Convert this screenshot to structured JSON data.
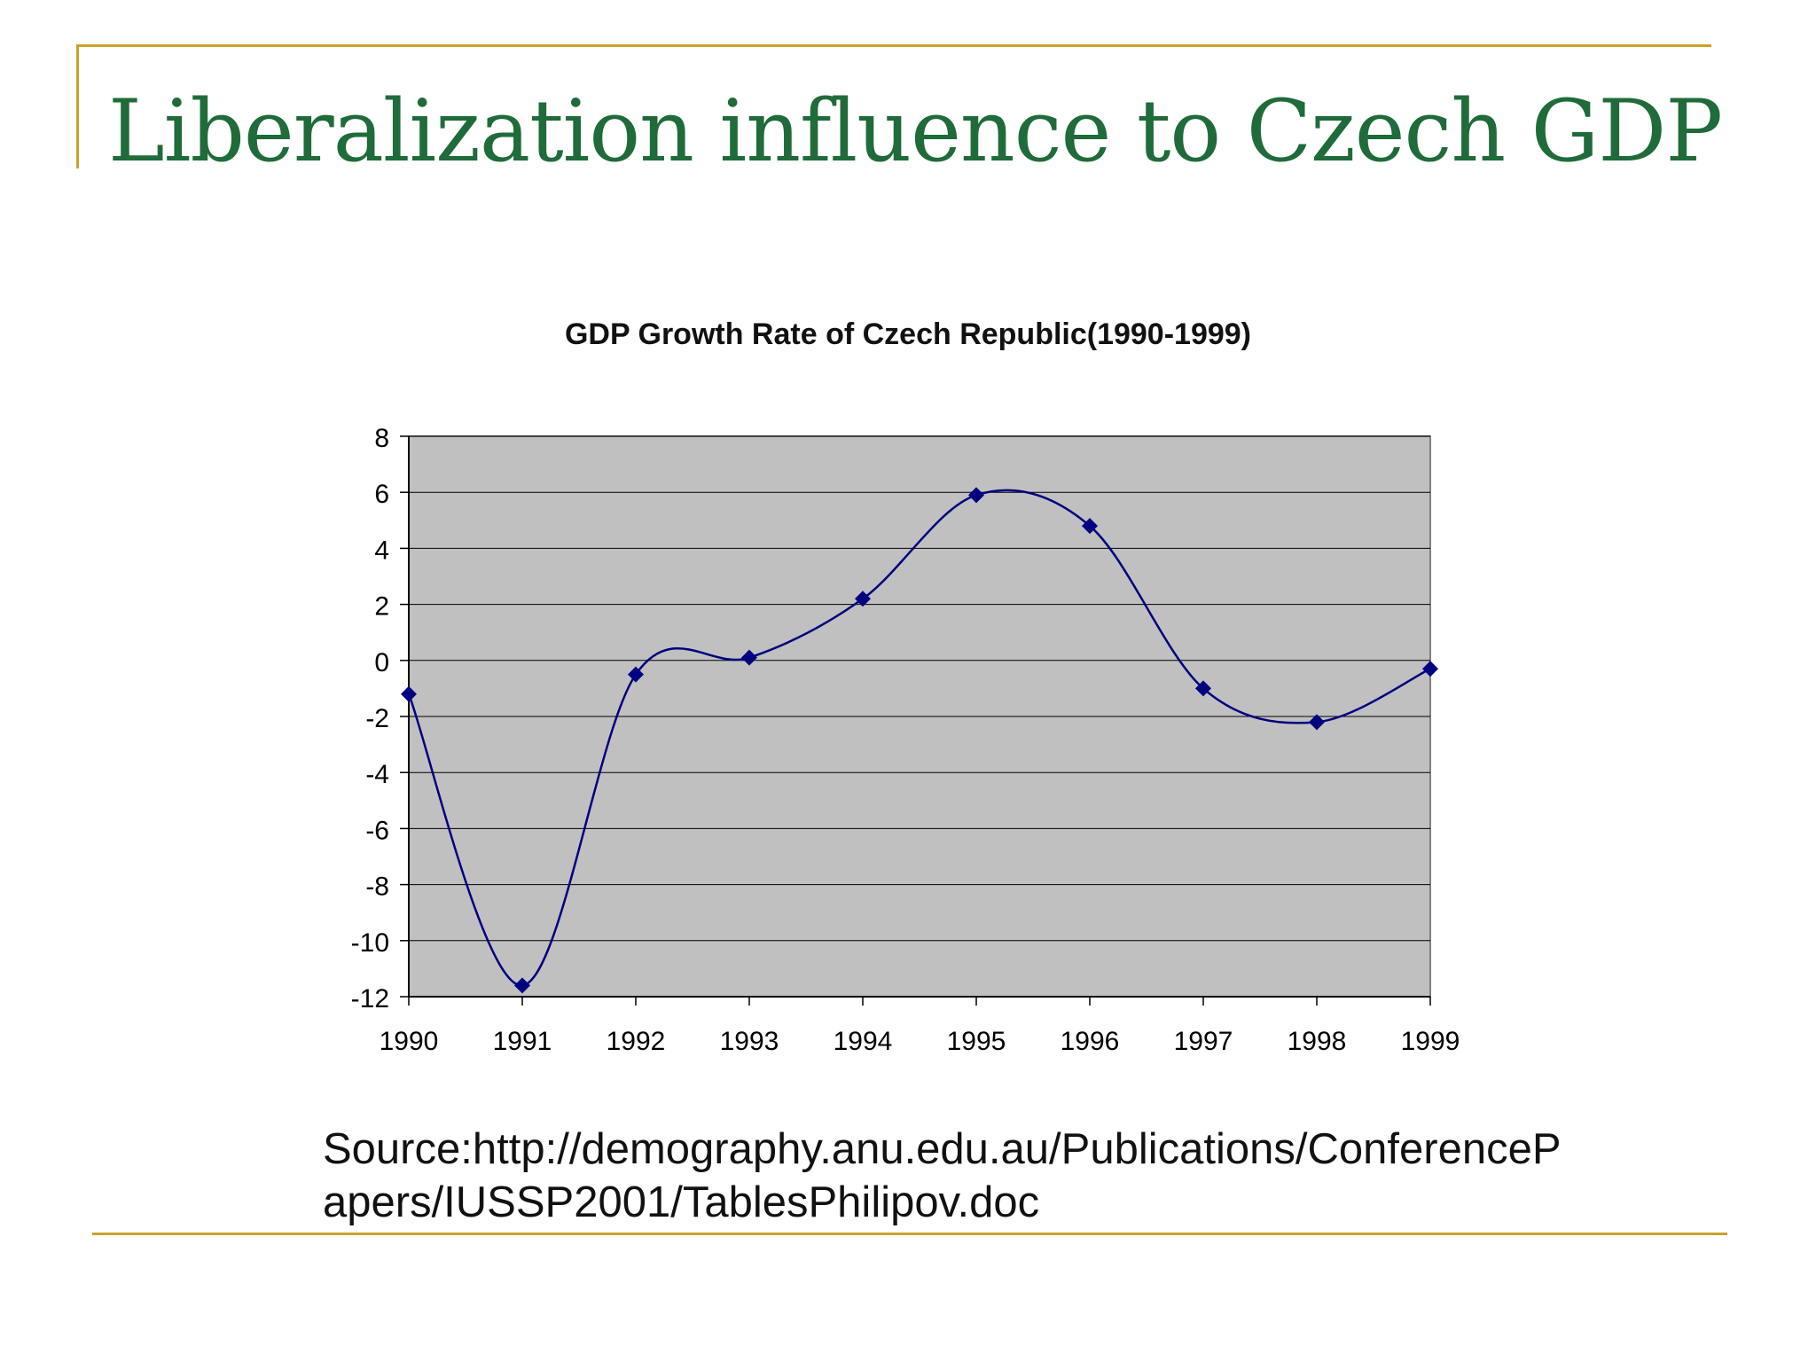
{
  "slide": {
    "title": "Liberalization influence to Czech GDP",
    "source_text": "Source:http://demography.anu.edu.au/Publications/ConferencePapers/IUSSP2001/TablesPhilipov.doc",
    "accent_color": "#C9A227",
    "title_color": "#1F6B3A"
  },
  "chart_data": {
    "type": "line",
    "title": "GDP Growth Rate of Czech Republic(1990-1999)",
    "xlabel": "",
    "ylabel": "",
    "categories": [
      "1990",
      "1991",
      "1992",
      "1993",
      "1994",
      "1995",
      "1996",
      "1997",
      "1998",
      "1999"
    ],
    "series": [
      {
        "values": [
          -1.2,
          -11.6,
          -0.5,
          0.1,
          2.2,
          5.9,
          4.8,
          -1.0,
          -2.2,
          -0.3
        ]
      }
    ],
    "ylim": [
      -12,
      8
    ],
    "yticks": [
      8,
      6,
      4,
      2,
      0,
      -2,
      -4,
      -6,
      -8,
      -10,
      -12
    ],
    "grid": true,
    "smooth": true,
    "marker": "diamond",
    "legend": "none",
    "colors": {
      "line": "#000080",
      "plot_bg": "#C0C0C0",
      "grid": "#000000"
    }
  }
}
